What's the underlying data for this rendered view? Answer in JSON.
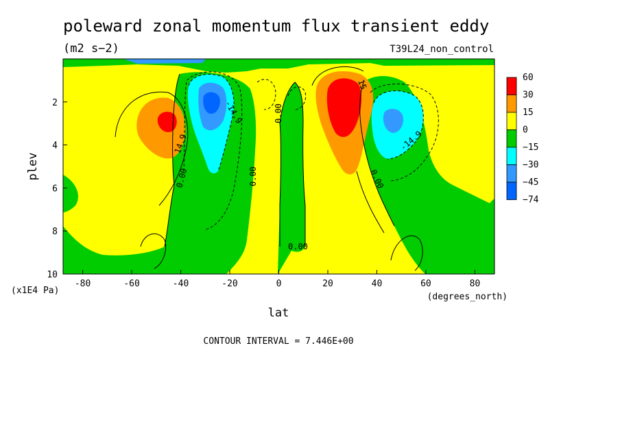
{
  "chart_data": {
    "type": "heatmap",
    "title": "poleward zonal momentum flux transient eddy",
    "units": "(m2 s−2)",
    "experiment": "T39L24_non_control",
    "xlabel": "lat",
    "x_units": "(degrees_north)",
    "ylabel": "plev",
    "y_units": "(x1E4 Pa)",
    "xlim": [
      -88,
      88
    ],
    "ylim": [
      10,
      0
    ],
    "x_ticks": [
      "-80",
      "-60",
      "-40",
      "-20",
      "0",
      "20",
      "40",
      "60",
      "80"
    ],
    "y_ticks": [
      "2",
      "4",
      "6",
      "8",
      "10"
    ],
    "colorbar_levels": [
      "60",
      "30",
      "15",
      "0",
      "−15",
      "−30",
      "−45",
      "−74"
    ],
    "colorbar_colors": [
      "#ff0000",
      "#ff9900",
      "#ffff00",
      "#00cc00",
      "#00ffff",
      "#3399ff",
      "#0066ff"
    ],
    "contour_labels": [
      "14.9",
      "-14.9",
      "0.00",
      "0.00",
      "0.00",
      "0.00",
      "0.00",
      "15",
      "-14.9"
    ],
    "contour_interval": "CONTOUR INTERVAL = 7.446E+00",
    "features": [
      {
        "name": "SH positive max",
        "lat": -47,
        "plev": 3.0,
        "value": 30
      },
      {
        "name": "SH negative min",
        "lat": -27,
        "plev": 2.2,
        "value": -45
      },
      {
        "name": "NH positive max",
        "lat": 29,
        "plev": 2.4,
        "value": 45
      },
      {
        "name": "NH negative min",
        "lat": 46,
        "plev": 3.0,
        "value": -30
      }
    ]
  }
}
